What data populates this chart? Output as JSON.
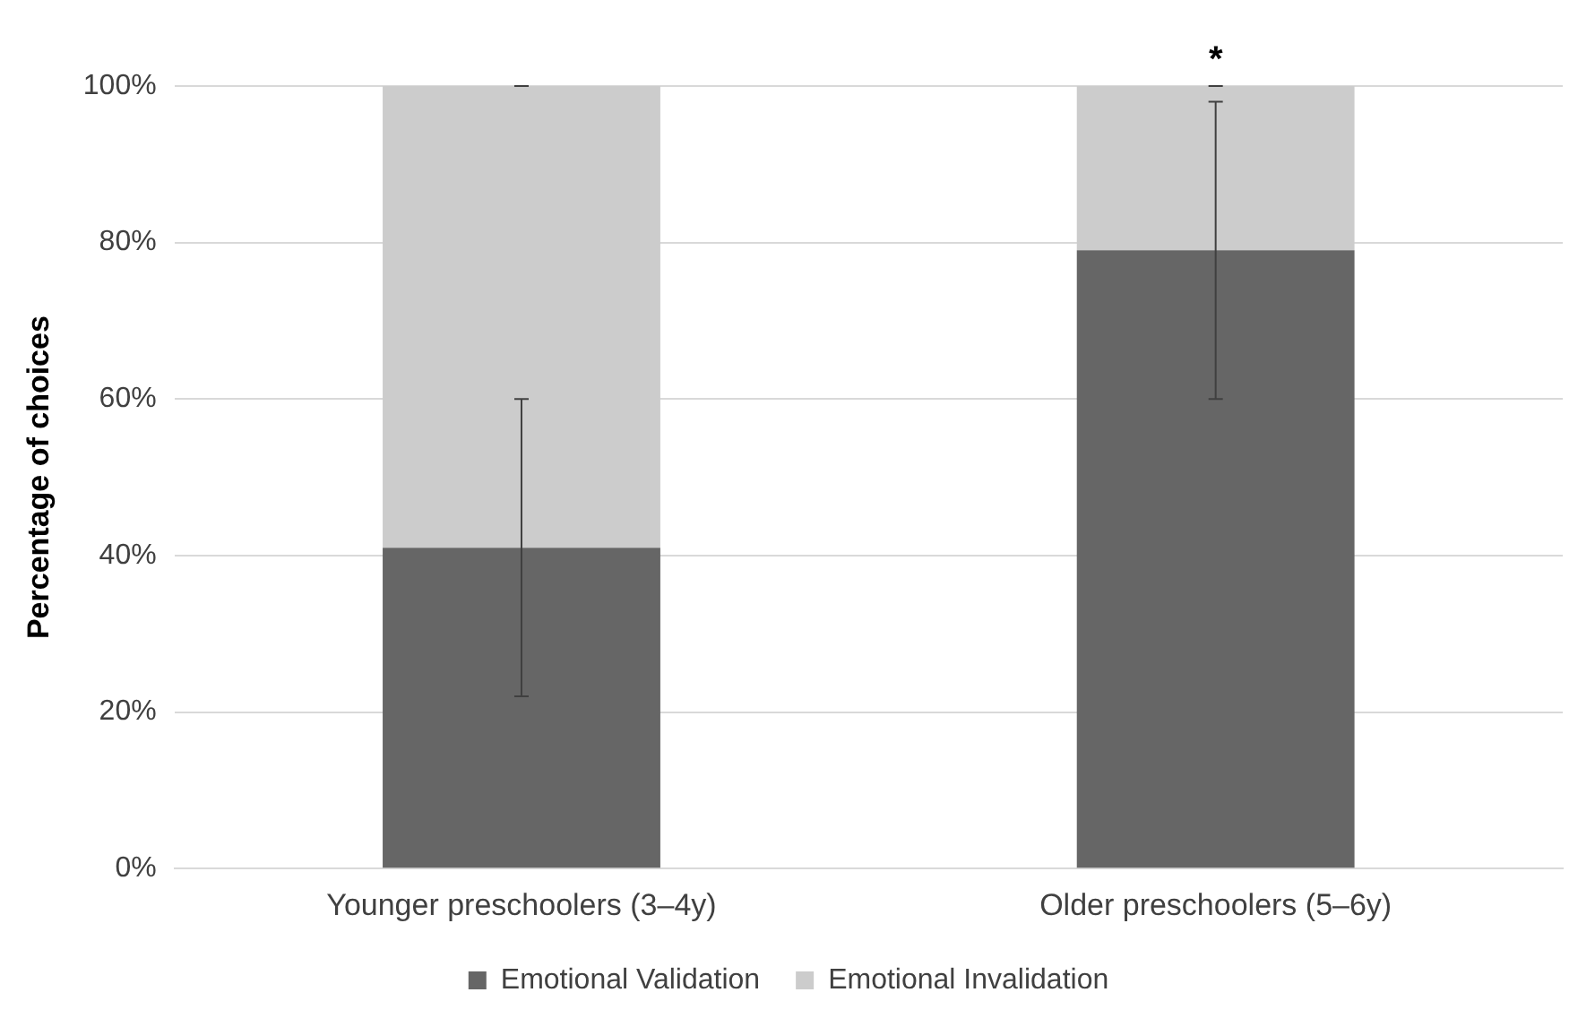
{
  "chart_data": {
    "type": "bar",
    "stacked": true,
    "categories": [
      "Younger preschoolers (3–4y)",
      "Older preschoolers (5–6y)"
    ],
    "series": [
      {
        "name": "Emotional Validation",
        "color": "#666666",
        "values": [
          41,
          79
        ],
        "errors": [
          [
            22,
            60
          ],
          [
            60,
            98
          ]
        ]
      },
      {
        "name": "Emotional Invalidation",
        "color": "#cccccc",
        "values": [
          59,
          21
        ],
        "errors": [
          0,
          0
        ]
      }
    ],
    "ylabel": "Percentage of choices",
    "ylim": [
      0,
      100
    ],
    "yticks": [
      {
        "value": 0,
        "label": "0%"
      },
      {
        "value": 20,
        "label": "20%"
      },
      {
        "value": 40,
        "label": "40%"
      },
      {
        "value": 60,
        "label": "60%"
      },
      {
        "value": 80,
        "label": "80%"
      },
      {
        "value": 100,
        "label": "100%"
      }
    ],
    "grid": "y",
    "legend": "bottom",
    "annotations": [
      {
        "text": "*",
        "x": "Older preschoolers (5–6y)"
      }
    ]
  }
}
